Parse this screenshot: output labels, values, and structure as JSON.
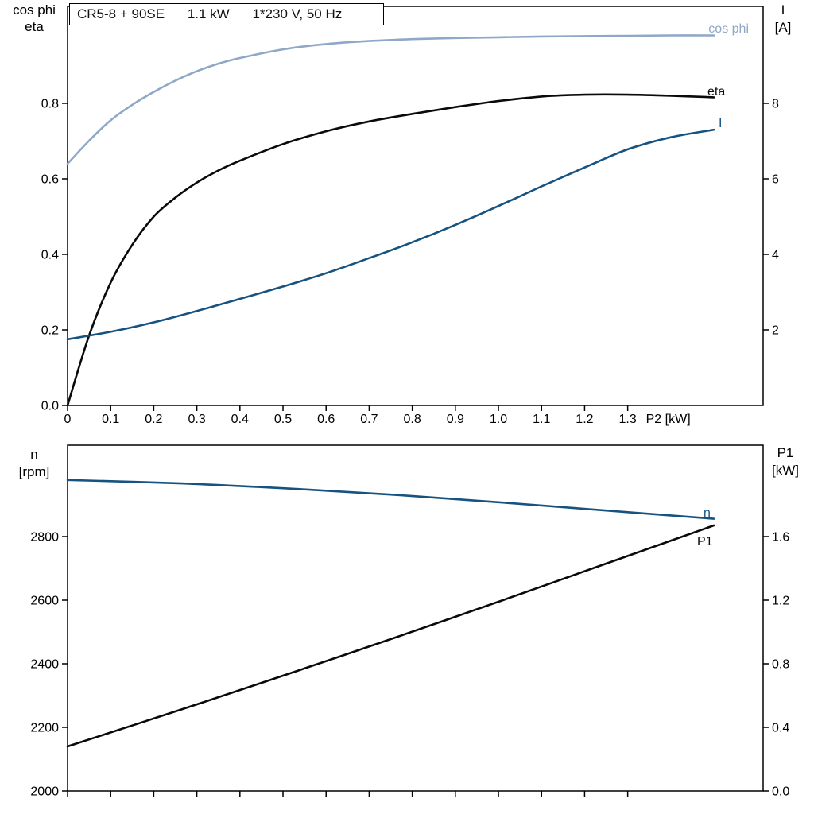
{
  "title_box": {
    "model": "CR5-8 + 90SE",
    "power": "1.1 kW",
    "supply": "1*230 V, 50 Hz"
  },
  "colors": {
    "cos_phi_blue": "#8fa8c8",
    "current_blue": "#175380",
    "curve_black": "#0a0a0a",
    "axis_black": "#000000"
  },
  "chart_data": [
    {
      "type": "line",
      "id": "top",
      "title": "CR5-8 + 90SE  1.1 kW  1*230 V, 50 Hz",
      "left_axis_title": [
        "cos phi",
        "eta"
      ],
      "right_axis_title": [
        "I",
        "[A]"
      ],
      "x_axis_title": "P2 [kW]",
      "xlim": [
        0,
        1.6143
      ],
      "left_ylim": [
        0,
        1.0568
      ],
      "right_ylim": [
        0,
        10.568
      ],
      "x_tick_values": [
        0,
        0.1,
        0.2,
        0.3,
        0.4,
        0.5,
        0.6,
        0.7,
        0.8,
        0.9,
        1.0,
        1.1,
        1.2,
        1.3
      ],
      "x_tick_labels": [
        "0",
        "0.1",
        "0.2",
        "0.3",
        "0.4",
        "0.5",
        "0.6",
        "0.7",
        "0.8",
        "0.9",
        "1.0",
        "1.1",
        "1.2",
        "1.3"
      ],
      "left_ticks": {
        "values": [
          0,
          0.2,
          0.4,
          0.6,
          0.8
        ],
        "labels": [
          "0.0",
          "0.2",
          "0.4",
          "0.6",
          "0.8"
        ]
      },
      "right_ticks": {
        "values": [
          2,
          4,
          6,
          8
        ],
        "labels": [
          "2",
          "4",
          "6",
          "8"
        ]
      },
      "series": [
        {
          "name": "cos phi",
          "axis": "left",
          "color": "#8fa8c8",
          "points": [
            [
              0,
              0.64
            ],
            [
              0.05,
              0.701
            ],
            [
              0.1,
              0.755
            ],
            [
              0.15,
              0.796
            ],
            [
              0.2,
              0.83
            ],
            [
              0.25,
              0.86
            ],
            [
              0.3,
              0.885
            ],
            [
              0.35,
              0.905
            ],
            [
              0.4,
              0.92
            ],
            [
              0.5,
              0.943
            ],
            [
              0.6,
              0.957
            ],
            [
              0.7,
              0.965
            ],
            [
              0.8,
              0.97
            ],
            [
              0.9,
              0.973
            ],
            [
              1.0,
              0.975
            ],
            [
              1.1,
              0.977
            ],
            [
              1.2,
              0.978
            ],
            [
              1.3,
              0.979
            ],
            [
              1.4,
              0.98
            ],
            [
              1.5,
              0.98
            ]
          ]
        },
        {
          "name": "eta",
          "axis": "left",
          "color": "#0a0a0a",
          "points": [
            [
              0,
              0
            ],
            [
              0.05,
              0.185
            ],
            [
              0.1,
              0.325
            ],
            [
              0.15,
              0.425
            ],
            [
              0.2,
              0.5
            ],
            [
              0.25,
              0.55
            ],
            [
              0.3,
              0.59
            ],
            [
              0.35,
              0.622
            ],
            [
              0.4,
              0.648
            ],
            [
              0.5,
              0.692
            ],
            [
              0.6,
              0.726
            ],
            [
              0.7,
              0.752
            ],
            [
              0.8,
              0.772
            ],
            [
              0.9,
              0.79
            ],
            [
              1.0,
              0.806
            ],
            [
              1.1,
              0.818
            ],
            [
              1.2,
              0.823
            ],
            [
              1.3,
              0.823
            ],
            [
              1.4,
              0.82
            ],
            [
              1.5,
              0.816
            ]
          ]
        },
        {
          "name": "I",
          "axis": "right",
          "color": "#175380",
          "points": [
            [
              0,
              1.75
            ],
            [
              0.1,
              1.95
            ],
            [
              0.2,
              2.2
            ],
            [
              0.3,
              2.5
            ],
            [
              0.4,
              2.82
            ],
            [
              0.5,
              3.15
            ],
            [
              0.6,
              3.5
            ],
            [
              0.7,
              3.9
            ],
            [
              0.8,
              4.32
            ],
            [
              0.9,
              4.78
            ],
            [
              1.0,
              5.28
            ],
            [
              1.1,
              5.8
            ],
            [
              1.2,
              6.3
            ],
            [
              1.3,
              6.78
            ],
            [
              1.4,
              7.1
            ],
            [
              1.5,
              7.3
            ]
          ]
        }
      ]
    },
    {
      "type": "line",
      "id": "bottom",
      "title": "",
      "left_axis_title": [
        "n",
        "[rpm]"
      ],
      "right_axis_title": [
        "P1",
        "[kW]"
      ],
      "x_axis_title": "",
      "xlim": [
        0,
        1.6143
      ],
      "left_ylim": [
        2000,
        3087.5
      ],
      "right_ylim": [
        0,
        2.175
      ],
      "x_tick_values": [
        0,
        0.1,
        0.2,
        0.3,
        0.4,
        0.5,
        0.6,
        0.7,
        0.8,
        0.9,
        1.0,
        1.1,
        1.2,
        1.3
      ],
      "x_tick_labels": null,
      "left_ticks": {
        "values": [
          2000,
          2200,
          2400,
          2600,
          2800
        ],
        "labels": [
          "2000",
          "2200",
          "2400",
          "2600",
          "2800"
        ]
      },
      "right_ticks": {
        "values": [
          0,
          0.4,
          0.8,
          1.2,
          1.6
        ],
        "labels": [
          "0.0",
          "0.4",
          "0.8",
          "1.2",
          "1.6"
        ]
      },
      "series": [
        {
          "name": "n",
          "axis": "left",
          "color": "#175380",
          "points": [
            [
              0,
              2978
            ],
            [
              0.25,
              2968
            ],
            [
              0.5,
              2952
            ],
            [
              0.75,
              2932
            ],
            [
              1.0,
              2908
            ],
            [
              1.25,
              2882
            ],
            [
              1.5,
              2856
            ]
          ]
        },
        {
          "name": "P1",
          "axis": "right",
          "color": "#0a0a0a",
          "points": [
            [
              0,
              0.28
            ],
            [
              0.25,
              0.5
            ],
            [
              0.5,
              0.725
            ],
            [
              0.75,
              0.955
            ],
            [
              1.0,
              1.19
            ],
            [
              1.25,
              1.43
            ],
            [
              1.5,
              1.67
            ]
          ]
        }
      ]
    }
  ]
}
